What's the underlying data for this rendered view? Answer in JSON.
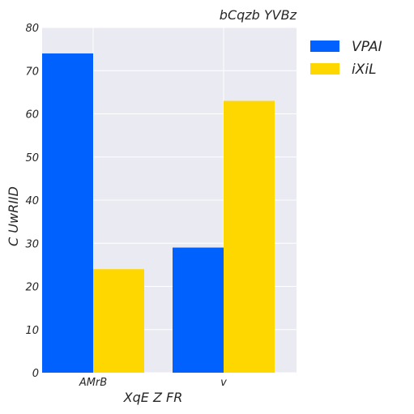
{
  "chart_data": {
    "type": "bar",
    "title": "bCqzb YVBz",
    "xlabel": "XqE Z FR",
    "ylabel": "C UwRIID",
    "categories": [
      "AMrB",
      "v"
    ],
    "series": [
      {
        "name": "VPAI",
        "values": [
          74,
          29
        ],
        "color": "#0061ff"
      },
      {
        "name": "iXiL",
        "values": [
          24,
          63
        ],
        "color": "#ffd700"
      }
    ],
    "ylim": [
      0,
      80
    ],
    "yticks": [
      0,
      10,
      20,
      30,
      40,
      50,
      60,
      70,
      80
    ],
    "grid": true,
    "legend_position": "outside-top-right"
  }
}
